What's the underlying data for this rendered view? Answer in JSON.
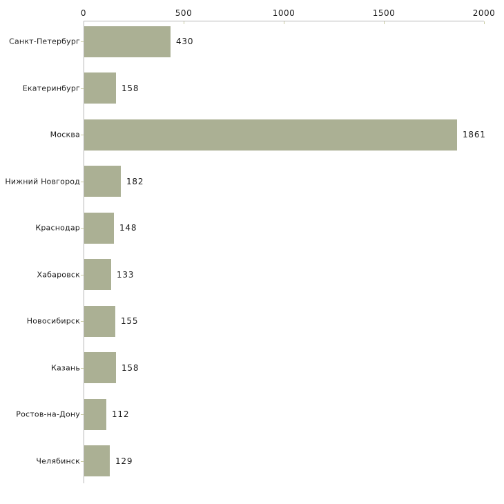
{
  "chart_data": {
    "type": "bar",
    "orientation": "horizontal",
    "title": "",
    "xlabel": "",
    "ylabel": "",
    "categories": [
      "Санкт-Петербург",
      "Екатеринбург",
      "Москва",
      "Нижний Новгород",
      "Краснодар",
      "Хабаровск",
      "Новосибирск",
      "Казань",
      "Ростов-на-Дону",
      "Челябинск"
    ],
    "values": [
      430,
      158,
      1861,
      182,
      148,
      133,
      155,
      158,
      112,
      129
    ],
    "value_labels": [
      "430",
      "158",
      "1861",
      "182",
      "148",
      "133",
      "155",
      "158",
      "112",
      "129"
    ],
    "x_ticks": [
      "0",
      "500",
      "1000",
      "1500",
      "2000"
    ],
    "xlim": [
      0,
      2000
    ],
    "grid": false,
    "legend": false,
    "axis_position": "top",
    "colors": {
      "bar_fill": "#abb094",
      "axis_line": "#b4b4b4",
      "tick_mark": "#c8caa0",
      "text": "#1a1a1a",
      "background": "#ffffff"
    }
  }
}
